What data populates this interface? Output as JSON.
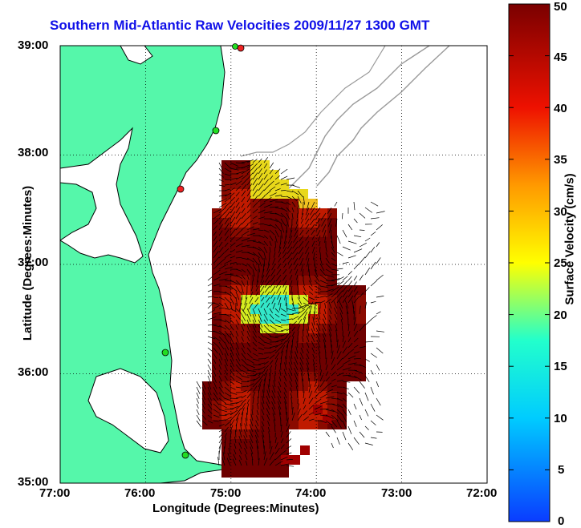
{
  "title": "Southern Mid-Atlantic Raw Velocities 2009/11/27 1300 GMT",
  "x_axis": {
    "label": "Longitude (Degrees:Minutes)",
    "ticks": [
      "77:00",
      "76:00",
      "75:00",
      "74:00",
      "73:00",
      "72:00"
    ]
  },
  "y_axis": {
    "label": "Latitude (Degrees:Minutes)",
    "ticks": [
      "39:00",
      "38:00",
      "37:00",
      "36:00",
      "35:00"
    ]
  },
  "colorbar": {
    "label": "Surface Velocity (cm/s)",
    "ticks": [
      "50",
      "45",
      "40",
      "35",
      "30",
      "25",
      "20",
      "15",
      "10",
      "5",
      "0"
    ],
    "range": [
      0,
      50
    ]
  },
  "colors": {
    "land": "#55f7aa",
    "title": "#1010e8",
    "coastline": "#000000",
    "bathymetry": "#999999",
    "site_green": "#22dd22",
    "site_red": "#ee2222"
  },
  "map_extent": {
    "lon_west": -77,
    "lon_east": -72,
    "lat_south": 35,
    "lat_north": 39
  }
}
